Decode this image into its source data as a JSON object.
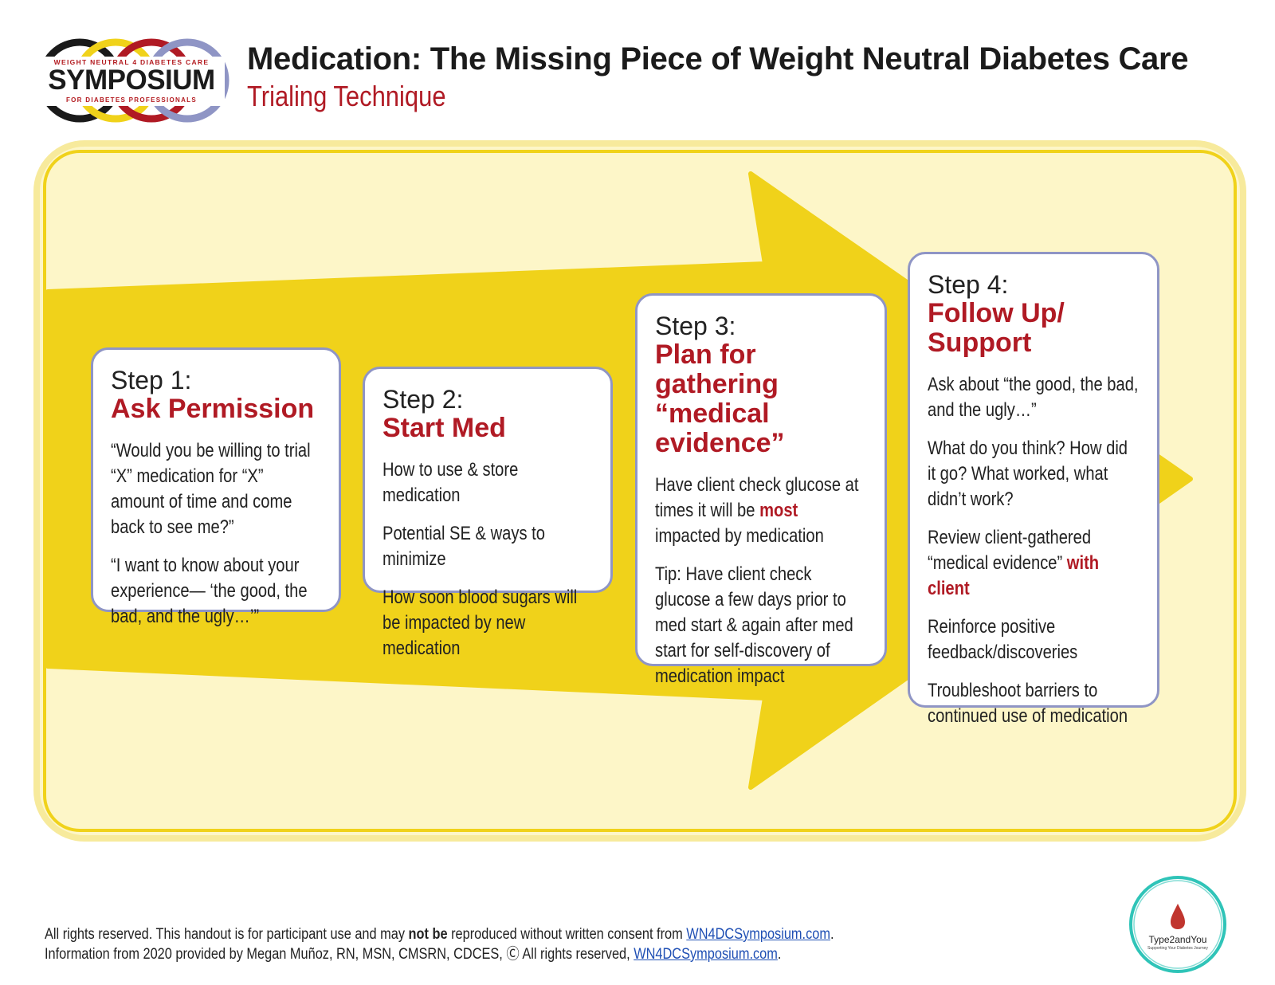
{
  "logo": {
    "top": "WEIGHT NEUTRAL 4 DIABETES CARE",
    "main": "SYMPOSIUM",
    "bottom": "FOR DIABETES PROFESSIONALS",
    "ring_colors": [
      "#1a1a1a",
      "#f0d21a",
      "#b01a24",
      "#8f95c5"
    ]
  },
  "header": {
    "title": "Medication: The Missing Piece of Weight Neutral Diabetes Care",
    "subtitle": "Trialing Technique"
  },
  "colors": {
    "accent_red": "#b01a24",
    "arrow_yellow": "#f0d21a",
    "panel_fill": "#fdf6c8",
    "card_border": "#8f95c5"
  },
  "steps": [
    {
      "step": "Step 1:",
      "heading": "Ask Permission",
      "bullets": [
        {
          "text": "“Would you be willing to trial “X” medication for “X” amount of time and come back to see me?”"
        },
        {
          "text": "“I want to know about your experience— ‘the good, the bad, and the ugly…’”"
        }
      ]
    },
    {
      "step": "Step 2:",
      "heading": "Start Med",
      "bullets": [
        {
          "text": "How to use & store medication"
        },
        {
          "text": "Potential SE & ways to minimize"
        },
        {
          "text": "How soon blood sugars will be impacted by new medication"
        }
      ]
    },
    {
      "step": "Step 3:",
      "heading": "Plan for gathering “medical evidence”",
      "bullets": [
        {
          "pre": "Have client check glucose at times it will be ",
          "strong": "most",
          "post": " impacted by medication"
        },
        {
          "text": "Tip:  Have client check glucose a few days prior to med start & again after med start for self-discovery of medication impact"
        }
      ]
    },
    {
      "step": "Step 4:",
      "heading": "Follow Up/ Support",
      "bullets": [
        {
          "text": "Ask about “the good, the bad, and the ugly…”"
        },
        {
          "text": "What do you think? How did it go? What worked, what didn’t work?"
        },
        {
          "pre": "Review client-gathered “medical evidence” ",
          "strong": "with client",
          "post": ""
        },
        {
          "text": "Reinforce positive feedback/discoveries"
        },
        {
          "text": "Troubleshoot barriers to continued use of medication"
        }
      ]
    }
  ],
  "footer": {
    "line1_pre": "All rights reserved. This handout is for participant use and may ",
    "line1_bold": "not be",
    "line1_post": " reproduced without written consent from ",
    "line1_link": "WN4DCSymposium.com",
    "line1_end": ".",
    "line2_pre": "Information from 2020 provided by Megan Muñoz, RN, MSN, CMSRN, CDCES, Ⓒ All rights reserved, ",
    "line2_link": "WN4DCSymposium.com",
    "line2_end": "."
  },
  "badge": {
    "name": "Type2andYou",
    "tagline": "Supporting Your Diabetes Journey",
    "ring_color": "#2fc4b8"
  }
}
